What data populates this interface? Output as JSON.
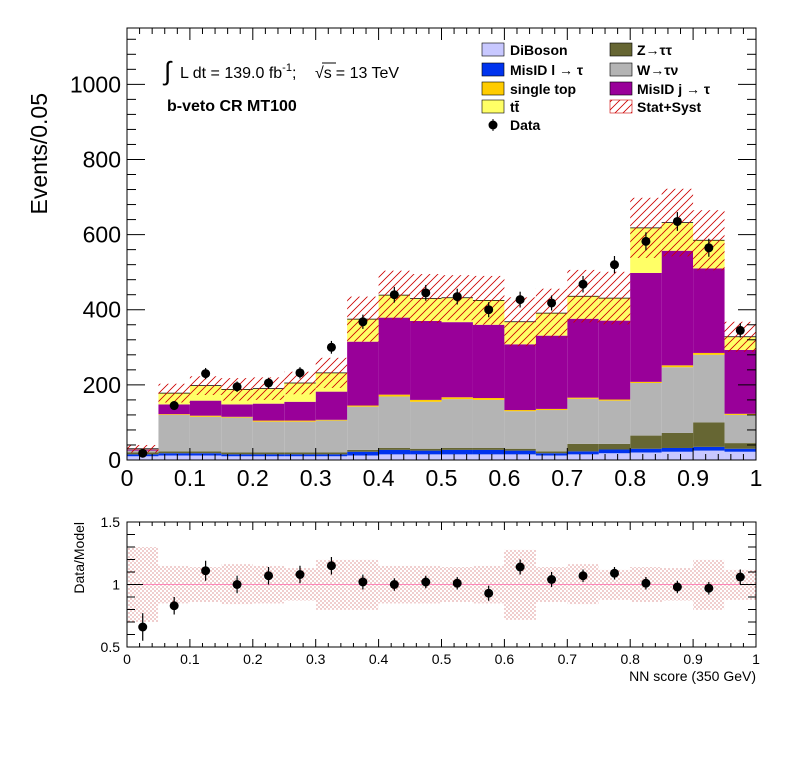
{
  "chart_data": {
    "type": "bar",
    "subtype": "stacked-histogram-with-ratio",
    "x_bin_edges": [
      0,
      0.05,
      0.1,
      0.15,
      0.2,
      0.25,
      0.3,
      0.35,
      0.4,
      0.45,
      0.5,
      0.55,
      0.6,
      0.65,
      0.7,
      0.75,
      0.8,
      0.85,
      0.9,
      0.95,
      1.0
    ],
    "xlabel": "NN score (350 GeV)",
    "ylabel": "Events/0.05",
    "ratio_ylabel": "Data/Model",
    "xlim": [
      0,
      1
    ],
    "ylim": [
      0,
      1150
    ],
    "ratio_ylim": [
      0.5,
      1.5
    ],
    "x_ticks": [
      "0",
      "0.1",
      "0.2",
      "0.3",
      "0.4",
      "0.5",
      "0.6",
      "0.7",
      "0.8",
      "0.9",
      "1"
    ],
    "y_ticks": [
      "0",
      "200",
      "400",
      "600",
      "800",
      "1000"
    ],
    "ratio_y_ticks": [
      "0.5",
      "1",
      "1.5"
    ],
    "annotations": {
      "lumi_integral": "∫",
      "lumi_text": "L dt = 139.0 fb",
      "lumi_sup": "-1",
      "energy_sep": ";",
      "sqrt_s": "√s",
      "energy_text": "= 13 TeV",
      "region": "b-veto CR MT100"
    },
    "legend_position": "top-right",
    "series": [
      {
        "name": "DiBoson",
        "color": "#c8c8ff",
        "values": [
          10,
          12,
          12,
          10,
          10,
          10,
          10,
          12,
          15,
          15,
          15,
          15,
          15,
          12,
          15,
          18,
          20,
          22,
          25,
          22
        ]
      },
      {
        "name": "MisID l → τ",
        "color": "#0033ee",
        "values": [
          5,
          6,
          6,
          5,
          5,
          5,
          5,
          10,
          12,
          10,
          12,
          12,
          10,
          6,
          8,
          10,
          10,
          10,
          10,
          8
        ]
      },
      {
        "name": "Z→ττ",
        "color": "#666633",
        "values": [
          5,
          5,
          5,
          5,
          5,
          5,
          5,
          5,
          5,
          5,
          5,
          5,
          5,
          5,
          20,
          15,
          35,
          40,
          65,
          15
        ]
      },
      {
        "name": "W→τν",
        "color": "#b4b4b4",
        "values": [
          5,
          97,
          92,
          93,
          82,
          82,
          85,
          115,
          137,
          125,
          130,
          128,
          100,
          110,
          120,
          115,
          140,
          175,
          180,
          75
        ]
      },
      {
        "name": "single top",
        "color": "#ffcc00",
        "values": [
          0,
          2,
          3,
          2,
          3,
          3,
          2,
          3,
          5,
          5,
          5,
          5,
          3,
          3,
          3,
          3,
          3,
          5,
          5,
          3
        ]
      },
      {
        "name": "MisID j → τ",
        "color": "#990099",
        "values": [
          3,
          26,
          40,
          33,
          45,
          50,
          75,
          170,
          205,
          210,
          200,
          195,
          175,
          195,
          210,
          210,
          290,
          305,
          225,
          170
        ]
      },
      {
        "name": "tt̄",
        "color": "#ffff66",
        "values": [
          2,
          30,
          40,
          40,
          40,
          50,
          50,
          60,
          60,
          60,
          65,
          65,
          60,
          60,
          60,
          60,
          120,
          75,
          75,
          35
        ]
      }
    ],
    "data": {
      "name": "Data",
      "values": [
        18,
        145,
        230,
        195,
        205,
        232,
        300,
        368,
        440,
        445,
        435,
        400,
        427,
        418,
        468,
        520,
        582,
        635,
        565,
        345
      ],
      "errors": [
        4,
        12,
        15,
        14,
        14,
        15,
        17,
        19,
        21,
        21,
        21,
        20,
        21,
        20,
        22,
        23,
        24,
        25,
        24,
        19
      ]
    },
    "model_uncertainty": {
      "name": "Stat+Syst",
      "values": [
        10,
        25,
        25,
        30,
        30,
        30,
        40,
        60,
        65,
        65,
        60,
        65,
        65,
        65,
        70,
        70,
        80,
        90,
        80,
        40
      ]
    },
    "ratio": {
      "values": [
        0.66,
        0.83,
        1.11,
        1.0,
        1.07,
        1.08,
        1.15,
        1.02,
        1.0,
        1.02,
        1.01,
        0.93,
        1.14,
        1.04,
        1.07,
        1.09,
        1.01,
        0.98,
        0.97,
        1.06
      ],
      "errors": [
        0.11,
        0.07,
        0.08,
        0.07,
        0.07,
        0.07,
        0.07,
        0.06,
        0.05,
        0.05,
        0.05,
        0.06,
        0.06,
        0.06,
        0.05,
        0.05,
        0.05,
        0.05,
        0.05,
        0.06
      ],
      "band_half_widths": [
        0.3,
        0.15,
        0.14,
        0.16,
        0.15,
        0.13,
        0.2,
        0.2,
        0.15,
        0.15,
        0.14,
        0.15,
        0.28,
        0.14,
        0.16,
        0.12,
        0.14,
        0.13,
        0.2,
        0.12
      ]
    }
  }
}
